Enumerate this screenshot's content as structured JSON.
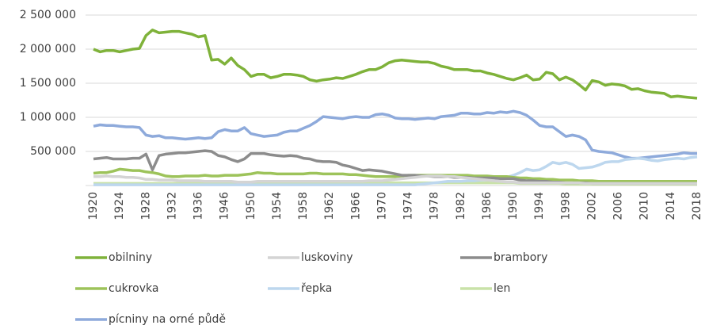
{
  "chart_data": {
    "type": "line",
    "categories": [
      "1920",
      null,
      null,
      null,
      "1924",
      null,
      null,
      null,
      "1928",
      null,
      null,
      null,
      "1932",
      null,
      null,
      null,
      "1936",
      null,
      null,
      null,
      "1946",
      null,
      null,
      null,
      "1950",
      null,
      null,
      null,
      "1954",
      null,
      null,
      null,
      "1958",
      null,
      null,
      null,
      "1962",
      null,
      null,
      null,
      "1966",
      null,
      null,
      null,
      "1970",
      null,
      null,
      null,
      "1974",
      null,
      null,
      null,
      "1978",
      null,
      null,
      null,
      "1982",
      null,
      null,
      null,
      "1986",
      null,
      null,
      null,
      "1990",
      null,
      null,
      null,
      "1994",
      null,
      null,
      null,
      "1998",
      null,
      null,
      null,
      "2002",
      null,
      null,
      null,
      "2006",
      null,
      null,
      null,
      "2010",
      null,
      null,
      null,
      "2014",
      null,
      null,
      null,
      "2018"
    ],
    "ylim": [
      0,
      2500000
    ],
    "yticks": [
      {
        "value": 500000,
        "label": "500 000"
      },
      {
        "value": 1000000,
        "label": "1 000 000"
      },
      {
        "value": 1500000,
        "label": "1 500 000"
      },
      {
        "value": 2000000,
        "label": "2 000 000"
      },
      {
        "value": 2500000,
        "label": "2 500 000"
      }
    ],
    "grid": true,
    "series": [
      {
        "name": "obilniny",
        "color": "#7fb23a",
        "values": [
          2000000,
          1960000,
          1980000,
          1980000,
          1960000,
          1980000,
          2000000,
          2010000,
          2200000,
          2280000,
          2240000,
          2250000,
          2260000,
          2260000,
          2240000,
          2220000,
          2180000,
          2200000,
          1840000,
          1850000,
          1780000,
          1870000,
          1760000,
          1700000,
          1600000,
          1630000,
          1630000,
          1580000,
          1600000,
          1630000,
          1630000,
          1620000,
          1600000,
          1550000,
          1530000,
          1550000,
          1560000,
          1580000,
          1570000,
          1600000,
          1630000,
          1670000,
          1700000,
          1700000,
          1740000,
          1800000,
          1830000,
          1840000,
          1830000,
          1820000,
          1810000,
          1810000,
          1790000,
          1750000,
          1730000,
          1700000,
          1700000,
          1700000,
          1680000,
          1680000,
          1650000,
          1630000,
          1600000,
          1570000,
          1550000,
          1580000,
          1620000,
          1550000,
          1560000,
          1660000,
          1640000,
          1550000,
          1590000,
          1550000,
          1480000,
          1400000,
          1540000,
          1520000,
          1470000,
          1490000,
          1480000,
          1460000,
          1410000,
          1420000,
          1390000,
          1370000,
          1360000,
          1350000,
          1300000,
          1310000,
          1300000,
          1290000,
          1280000
        ]
      },
      {
        "name": "luskoviny",
        "color": "#d4d4d4",
        "values": [
          130000,
          130000,
          140000,
          130000,
          130000,
          120000,
          120000,
          110000,
          90000,
          90000,
          80000,
          80000,
          80000,
          70000,
          70000,
          70000,
          70000,
          60000,
          60000,
          60000,
          60000,
          60000,
          50000,
          50000,
          50000,
          60000,
          60000,
          60000,
          60000,
          60000,
          60000,
          60000,
          60000,
          60000,
          60000,
          60000,
          60000,
          60000,
          60000,
          60000,
          60000,
          60000,
          70000,
          70000,
          70000,
          80000,
          90000,
          100000,
          110000,
          120000,
          130000,
          140000,
          140000,
          140000,
          130000,
          130000,
          120000,
          110000,
          100000,
          90000,
          80000,
          70000,
          60000,
          50000,
          50000,
          40000,
          40000,
          40000,
          40000,
          40000,
          40000,
          40000,
          40000,
          40000,
          40000,
          30000,
          30000,
          30000,
          30000,
          30000,
          30000,
          30000,
          30000,
          30000,
          30000,
          30000,
          30000,
          30000,
          30000,
          30000,
          30000,
          30000,
          30000
        ]
      },
      {
        "name": "brambory",
        "color": "#8c8c8c",
        "values": [
          390000,
          400000,
          410000,
          390000,
          390000,
          390000,
          400000,
          400000,
          460000,
          230000,
          440000,
          460000,
          470000,
          480000,
          480000,
          490000,
          500000,
          510000,
          500000,
          440000,
          420000,
          380000,
          350000,
          390000,
          470000,
          470000,
          470000,
          450000,
          440000,
          430000,
          440000,
          430000,
          400000,
          390000,
          360000,
          350000,
          350000,
          340000,
          300000,
          280000,
          250000,
          220000,
          230000,
          220000,
          210000,
          190000,
          170000,
          150000,
          150000,
          150000,
          140000,
          140000,
          130000,
          130000,
          130000,
          120000,
          120000,
          120000,
          110000,
          110000,
          110000,
          110000,
          100000,
          100000,
          100000,
          80000,
          70000,
          70000,
          60000,
          60000,
          50000,
          50000,
          40000,
          40000,
          40000,
          40000,
          30000,
          30000,
          30000,
          30000,
          30000,
          30000,
          30000,
          30000,
          30000,
          30000,
          30000,
          30000,
          30000,
          30000,
          30000,
          30000,
          30000
        ]
      },
      {
        "name": "cukrovka",
        "color": "#9dc35a",
        "values": [
          180000,
          190000,
          190000,
          210000,
          240000,
          230000,
          220000,
          220000,
          200000,
          190000,
          170000,
          140000,
          130000,
          130000,
          140000,
          140000,
          140000,
          150000,
          140000,
          140000,
          150000,
          150000,
          150000,
          160000,
          170000,
          190000,
          180000,
          180000,
          170000,
          170000,
          170000,
          170000,
          170000,
          180000,
          180000,
          170000,
          170000,
          170000,
          170000,
          160000,
          160000,
          150000,
          140000,
          130000,
          130000,
          130000,
          130000,
          140000,
          150000,
          150000,
          150000,
          150000,
          150000,
          150000,
          150000,
          150000,
          150000,
          150000,
          140000,
          140000,
          140000,
          130000,
          130000,
          130000,
          120000,
          110000,
          110000,
          100000,
          100000,
          90000,
          90000,
          80000,
          80000,
          80000,
          70000,
          70000,
          70000,
          60000,
          60000,
          60000,
          60000,
          60000,
          60000,
          60000,
          60000,
          60000,
          60000,
          60000,
          60000,
          60000,
          60000,
          60000,
          60000
        ]
      },
      {
        "name": "řepka",
        "color": "#bdd7ee",
        "values": [
          10000,
          10000,
          10000,
          10000,
          10000,
          10000,
          10000,
          10000,
          10000,
          10000,
          10000,
          10000,
          10000,
          10000,
          10000,
          10000,
          10000,
          10000,
          10000,
          10000,
          10000,
          10000,
          10000,
          10000,
          10000,
          10000,
          10000,
          10000,
          10000,
          10000,
          10000,
          10000,
          10000,
          10000,
          10000,
          10000,
          10000,
          10000,
          10000,
          10000,
          10000,
          10000,
          10000,
          10000,
          10000,
          10000,
          10000,
          10000,
          10000,
          10000,
          20000,
          30000,
          40000,
          50000,
          60000,
          60000,
          60000,
          70000,
          70000,
          80000,
          80000,
          90000,
          100000,
          120000,
          150000,
          190000,
          240000,
          220000,
          230000,
          280000,
          340000,
          320000,
          340000,
          310000,
          250000,
          260000,
          270000,
          300000,
          340000,
          350000,
          350000,
          380000,
          390000,
          400000,
          390000,
          370000,
          360000,
          380000,
          390000,
          400000,
          390000,
          410000,
          420000
        ]
      },
      {
        "name": "len",
        "color": "#c9e2a8",
        "values": [
          30000,
          30000,
          30000,
          30000,
          30000,
          30000,
          30000,
          30000,
          30000,
          30000,
          30000,
          30000,
          30000,
          30000,
          30000,
          30000,
          30000,
          30000,
          30000,
          30000,
          40000,
          40000,
          40000,
          40000,
          40000,
          40000,
          40000,
          40000,
          40000,
          40000,
          40000,
          40000,
          40000,
          40000,
          40000,
          40000,
          40000,
          40000,
          40000,
          40000,
          40000,
          40000,
          40000,
          40000,
          40000,
          40000,
          40000,
          40000,
          40000,
          40000,
          40000,
          40000,
          40000,
          40000,
          40000,
          40000,
          40000,
          40000,
          40000,
          40000,
          40000,
          40000,
          40000,
          40000,
          40000,
          30000,
          30000,
          30000,
          30000,
          30000,
          30000,
          30000,
          20000,
          20000,
          20000,
          20000,
          20000,
          20000,
          20000,
          20000,
          20000,
          20000,
          20000,
          20000,
          20000,
          20000,
          20000,
          20000,
          20000,
          20000,
          20000,
          20000,
          20000
        ]
      },
      {
        "name": "pícniny na orné půdě",
        "color": "#8eaadb",
        "values": [
          870000,
          890000,
          880000,
          880000,
          870000,
          860000,
          860000,
          850000,
          740000,
          720000,
          730000,
          700000,
          700000,
          690000,
          680000,
          690000,
          700000,
          690000,
          700000,
          790000,
          820000,
          800000,
          800000,
          850000,
          760000,
          740000,
          720000,
          730000,
          740000,
          780000,
          800000,
          800000,
          840000,
          880000,
          940000,
          1010000,
          1000000,
          990000,
          980000,
          1000000,
          1010000,
          1000000,
          1000000,
          1040000,
          1050000,
          1030000,
          990000,
          980000,
          980000,
          970000,
          980000,
          990000,
          980000,
          1010000,
          1020000,
          1030000,
          1060000,
          1060000,
          1050000,
          1050000,
          1070000,
          1060000,
          1080000,
          1070000,
          1090000,
          1070000,
          1030000,
          960000,
          880000,
          860000,
          860000,
          790000,
          720000,
          740000,
          720000,
          670000,
          520000,
          500000,
          490000,
          480000,
          450000,
          420000,
          400000,
          400000,
          410000,
          420000,
          430000,
          440000,
          450000,
          460000,
          480000,
          470000,
          470000
        ]
      }
    ]
  }
}
